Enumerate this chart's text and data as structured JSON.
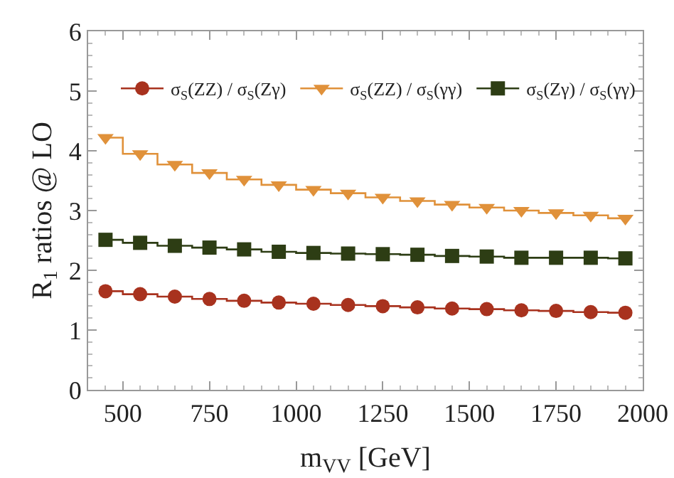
{
  "chart_data": {
    "type": "step",
    "xlabel": "m$_{VV}$ [GeV]",
    "ylabel": "R$_{1}$ ratios @ LO",
    "x": [
      450,
      550,
      650,
      750,
      850,
      950,
      1050,
      1150,
      1250,
      1350,
      1450,
      1550,
      1650,
      1750,
      1850,
      1950
    ],
    "xlim": [
      400,
      2000
    ],
    "xticks": [
      500,
      750,
      1000,
      1250,
      1500,
      1750,
      2000
    ],
    "ylim": [
      0,
      6
    ],
    "yticks": [
      0,
      1,
      2,
      3,
      4,
      5,
      6
    ],
    "grid": false,
    "legend": "top right",
    "series": [
      {
        "name": "σ$_{S}$(ZZ) / σ$_{S}$(Zγ)",
        "color": "#a8321e",
        "marker": "circle",
        "values": [
          1.65,
          1.6,
          1.56,
          1.52,
          1.49,
          1.46,
          1.44,
          1.42,
          1.4,
          1.38,
          1.36,
          1.35,
          1.33,
          1.32,
          1.3,
          1.29
        ]
      },
      {
        "name": "σ$_{S}$(ZZ) / σ$_{S}$(γγ)",
        "color": "#e0913a",
        "marker": "triangle",
        "values": [
          4.22,
          3.95,
          3.77,
          3.63,
          3.52,
          3.43,
          3.35,
          3.29,
          3.22,
          3.16,
          3.1,
          3.05,
          3.0,
          2.96,
          2.92,
          2.87
        ]
      },
      {
        "name": "σ$_{S}$(Zγ) / σ$_{S}$(γγ)",
        "color": "#2d3d14",
        "marker": "square",
        "values": [
          2.51,
          2.46,
          2.41,
          2.38,
          2.35,
          2.31,
          2.29,
          2.28,
          2.27,
          2.26,
          2.24,
          2.23,
          2.21,
          2.21,
          2.21,
          2.2
        ]
      }
    ]
  }
}
